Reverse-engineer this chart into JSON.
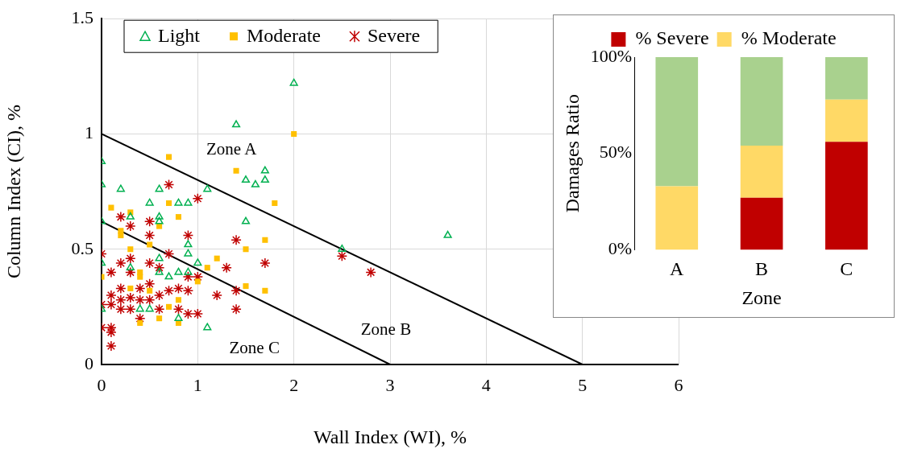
{
  "chart_data": [
    {
      "type": "scatter",
      "xlabel": "Wall Index (WI), %",
      "ylabel": "Column Index (CI), %",
      "xlim": [
        0,
        6
      ],
      "ylim": [
        0,
        1.5
      ],
      "xticks": [
        0,
        1,
        2,
        3,
        4,
        5,
        6
      ],
      "yticks": [
        0,
        0.5,
        1,
        1.5
      ],
      "grid": true,
      "legend": "top left",
      "series": [
        {
          "name": "Light",
          "color": "#00b050",
          "marker": "triangle",
          "x": [
            0,
            0,
            0,
            0,
            0,
            0.2,
            0.3,
            0.5,
            0.6,
            0.6,
            0.6,
            0.8,
            0.9,
            0.9,
            0.9,
            0.6,
            1.0,
            1.1,
            1.4,
            2.0,
            1.5,
            1.6,
            1.7,
            1.7,
            1.5,
            2.5,
            3.6,
            1.1,
            0.8,
            0.4,
            0.5,
            0.6,
            0.7,
            0.8,
            0.9,
            0.3
          ],
          "values": [
            0.88,
            0.78,
            0.62,
            0.44,
            0.24,
            0.76,
            0.64,
            0.7,
            0.76,
            0.64,
            0.62,
            0.7,
            0.7,
            0.52,
            0.48,
            0.46,
            0.44,
            0.76,
            1.04,
            1.22,
            0.8,
            0.78,
            0.8,
            0.84,
            0.62,
            0.5,
            0.56,
            0.16,
            0.2,
            0.24,
            0.24,
            0.4,
            0.38,
            0.4,
            0.4,
            0.42
          ]
        },
        {
          "name": "Moderate",
          "color": "#ffc000",
          "marker": "square",
          "x": [
            0.7,
            1.4,
            2.0,
            1.8,
            0.1,
            0.3,
            0.7,
            0.8,
            0.2,
            0.2,
            0.6,
            0.3,
            0.5,
            1.5,
            1.7,
            1.2,
            1.1,
            0,
            0.4,
            0.4,
            1.0,
            1.5,
            1.7,
            0.3,
            0.5,
            0.8,
            0.4,
            0.6,
            0.8,
            0.7
          ],
          "values": [
            0.9,
            0.84,
            1.0,
            0.7,
            0.68,
            0.66,
            0.7,
            0.64,
            0.58,
            0.56,
            0.6,
            0.5,
            0.52,
            0.5,
            0.54,
            0.46,
            0.42,
            0.38,
            0.4,
            0.38,
            0.36,
            0.34,
            0.32,
            0.33,
            0.32,
            0.28,
            0.18,
            0.2,
            0.18,
            0.25
          ]
        },
        {
          "name": "Severe",
          "color": "#c00000",
          "marker": "cross",
          "x": [
            0.7,
            1.0,
            0.2,
            0.3,
            0.5,
            0.9,
            0.5,
            1.4,
            0,
            0.2,
            0.3,
            0.5,
            0.6,
            1.0,
            1.3,
            1.7,
            2.5,
            2.8,
            0.9,
            1.4,
            1.2,
            0.1,
            0.3,
            0.1,
            0.2,
            0.2,
            0.3,
            0.1,
            0.2,
            0.3,
            0.4,
            0.4,
            0.5,
            0.5,
            0.6,
            0.6,
            0.7,
            0.8,
            0.8,
            0.9,
            0.9,
            1.0,
            0.4,
            0,
            0,
            0.1,
            0.1,
            0.1,
            1.4,
            0.7
          ],
          "values": [
            0.78,
            0.72,
            0.64,
            0.6,
            0.62,
            0.56,
            0.56,
            0.54,
            0.48,
            0.44,
            0.46,
            0.44,
            0.42,
            0.38,
            0.42,
            0.44,
            0.47,
            0.4,
            0.38,
            0.32,
            0.3,
            0.4,
            0.4,
            0.3,
            0.33,
            0.28,
            0.29,
            0.26,
            0.24,
            0.24,
            0.33,
            0.28,
            0.35,
            0.28,
            0.3,
            0.24,
            0.32,
            0.33,
            0.24,
            0.32,
            0.22,
            0.22,
            0.2,
            0.26,
            0.16,
            0.16,
            0.14,
            0.08,
            0.24,
            0.48
          ]
        },
        {
          "type": "line",
          "color": "#000000",
          "marker": "none",
          "x": [
            0,
            5
          ],
          "values": [
            1,
            0
          ]
        },
        {
          "type": "line",
          "color": "#000000",
          "marker": "none",
          "x": [
            0,
            3
          ],
          "values": [
            0.62,
            0
          ]
        }
      ],
      "annotations": [
        "Zone A",
        "Zone B",
        "Zone C"
      ]
    },
    {
      "type": "bar",
      "stacked": true,
      "categories": [
        "A",
        "B",
        "C"
      ],
      "xlabel": "Zone",
      "ylabel": "Damages Ratio",
      "ylim": [
        0,
        100
      ],
      "yticks": [
        {
          "value": 0,
          "label": "0%"
        },
        {
          "value": 50,
          "label": "50%"
        },
        {
          "value": 100,
          "label": "100%"
        }
      ],
      "legend": "top",
      "grid": false,
      "series": [
        {
          "name": "% Severe",
          "color": "#c00000",
          "values": [
            0,
            27,
            56
          ]
        },
        {
          "name": "% Moderate",
          "color": "#ffd966",
          "values": [
            33,
            27,
            22
          ]
        },
        {
          "color": "#a9d18e",
          "values": [
            67,
            46,
            22
          ]
        }
      ]
    }
  ]
}
